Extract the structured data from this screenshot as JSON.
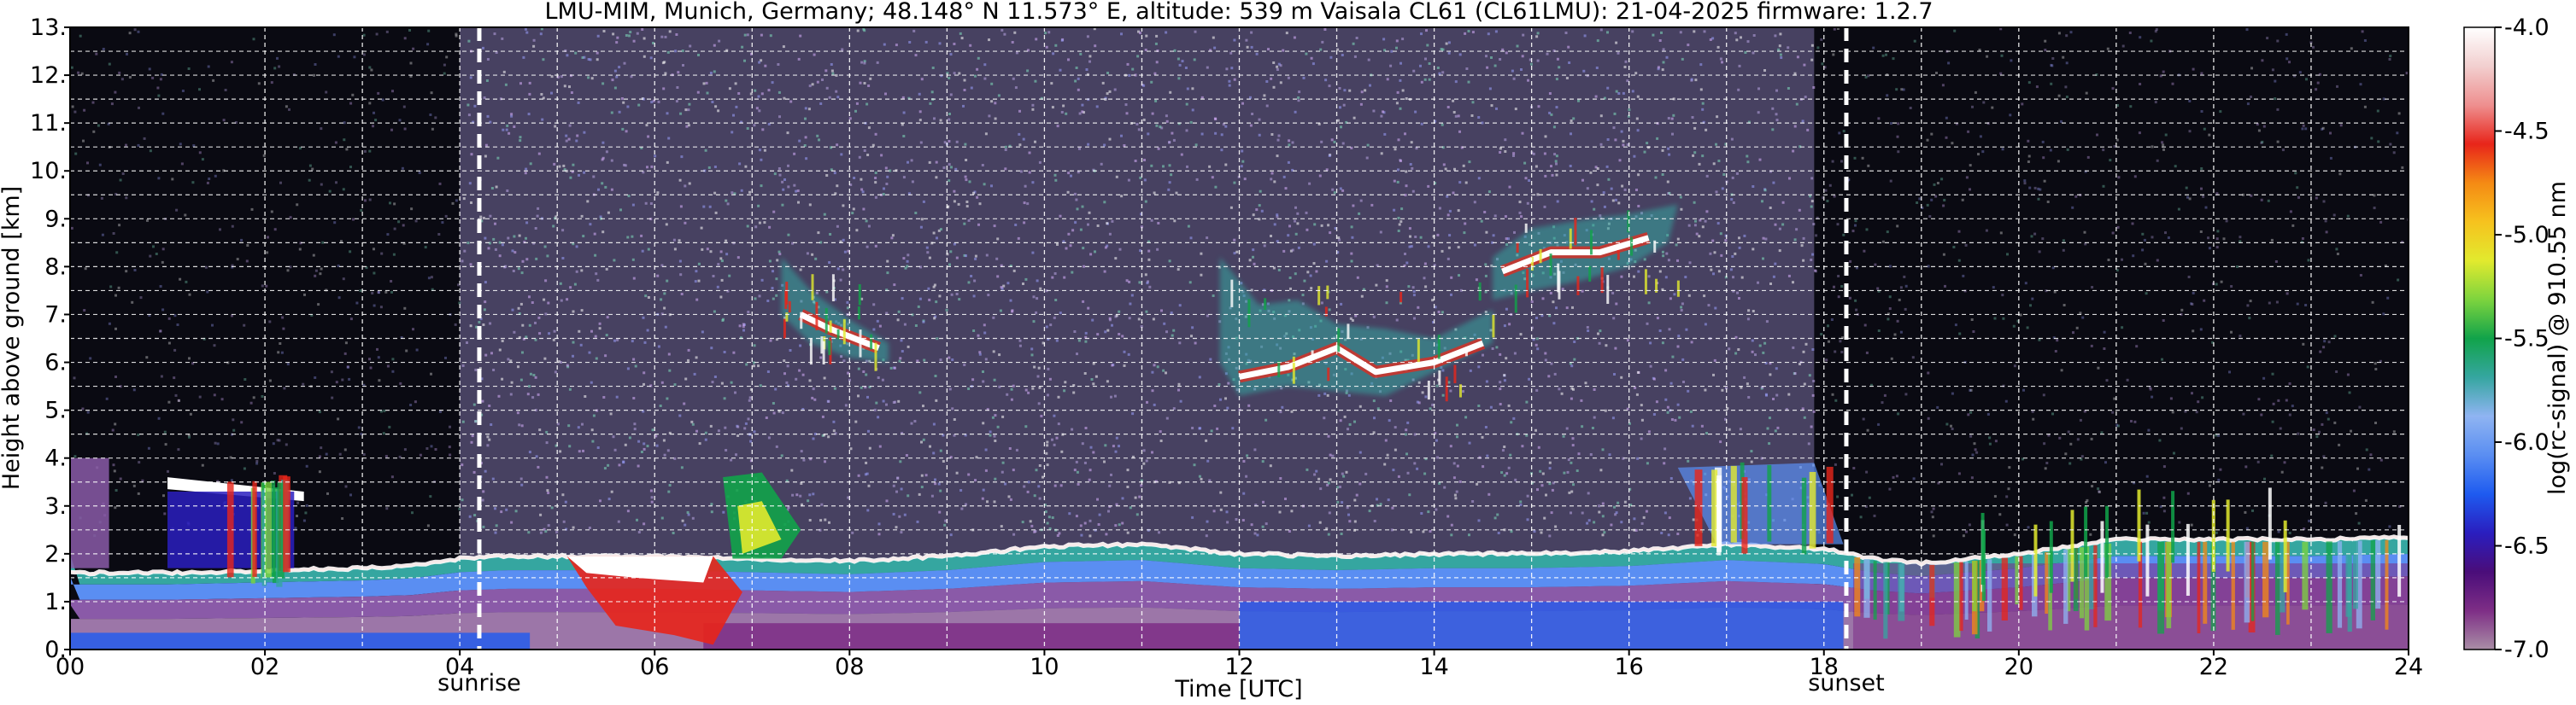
{
  "chart_data": {
    "type": "heatmap",
    "title": "LMU-MIM, Munich, Germany; 48.148° N 11.573° E, altitude: 539 m    Vaisala CL61 (CL61LMU): 21-04-2025    firmware: 1.2.7",
    "xlabel": "Time [UTC]",
    "ylabel": "Height above ground [km]",
    "colorbar_label": "log(rc-signal) @ 910.55 nm",
    "xlim": [
      0,
      24
    ],
    "ylim": [
      0,
      13
    ],
    "clim": [
      -7.0,
      -4.0
    ],
    "x_ticks": [
      "00",
      "02",
      "04",
      "06",
      "08",
      "10",
      "12",
      "14",
      "16",
      "18",
      "20",
      "22",
      "24"
    ],
    "y_ticks": [
      "0.",
      "1.",
      "2.",
      "3.",
      "4.",
      "5.",
      "6.",
      "7.",
      "8.",
      "9.",
      "10.",
      "11.",
      "12.",
      "13."
    ],
    "colorbar_ticks": [
      "-7.0",
      "-6.5",
      "-6.0",
      "-5.5",
      "-5.0",
      "-4.5",
      "-4.0"
    ],
    "grid": true,
    "annotations": [
      {
        "label": "sunrise",
        "time": 4.2
      },
      {
        "label": "sunset",
        "time": 18.23
      }
    ],
    "features": {
      "boundary_layer_top_km": [
        [
          0.0,
          1.6
        ],
        [
          1.0,
          1.6
        ],
        [
          2.0,
          1.65
        ],
        [
          3.0,
          1.7
        ],
        [
          3.5,
          1.75
        ],
        [
          4.0,
          1.9
        ],
        [
          4.5,
          1.95
        ],
        [
          5.0,
          1.95
        ],
        [
          6.0,
          1.95
        ],
        [
          7.0,
          1.9
        ],
        [
          8.0,
          1.85
        ],
        [
          9.0,
          1.95
        ],
        [
          10.0,
          2.15
        ],
        [
          11.0,
          2.2
        ],
        [
          12.0,
          2.0
        ],
        [
          13.0,
          1.95
        ],
        [
          14.0,
          2.0
        ],
        [
          15.0,
          2.0
        ],
        [
          16.0,
          2.05
        ],
        [
          17.0,
          2.2
        ],
        [
          18.0,
          2.1
        ],
        [
          18.5,
          1.9
        ],
        [
          19.0,
          1.8
        ],
        [
          20.0,
          2.0
        ],
        [
          21.0,
          2.3
        ],
        [
          22.0,
          2.3
        ],
        [
          23.0,
          2.3
        ],
        [
          24.0,
          2.35
        ]
      ],
      "cirrus_layers": [
        {
          "t0": 7.3,
          "t1": 8.4,
          "base_km": 6.1,
          "top_km": 8.2
        },
        {
          "t0": 11.8,
          "t1": 14.6,
          "base_km": 5.4,
          "top_km": 8.2
        },
        {
          "t0": 14.6,
          "t1": 16.5,
          "base_km": 7.6,
          "top_km": 9.2
        }
      ]
    }
  },
  "colors": {
    "colormap": [
      "#a98ea6",
      "#7e2e86",
      "#4a0d7a",
      "#2a1ebf",
      "#1e5bf0",
      "#5a8ef2",
      "#8fb4f2",
      "#35a6a0",
      "#11a34a",
      "#7dd43e",
      "#e2ea2e",
      "#f6c21e",
      "#f58a14",
      "#e8251a",
      "#ee8f8f",
      "#f2cfcf",
      "#ffffff"
    ],
    "night_background": "#0a0a12",
    "day_background": "#7a6fa3",
    "marker": "#ffffff"
  }
}
